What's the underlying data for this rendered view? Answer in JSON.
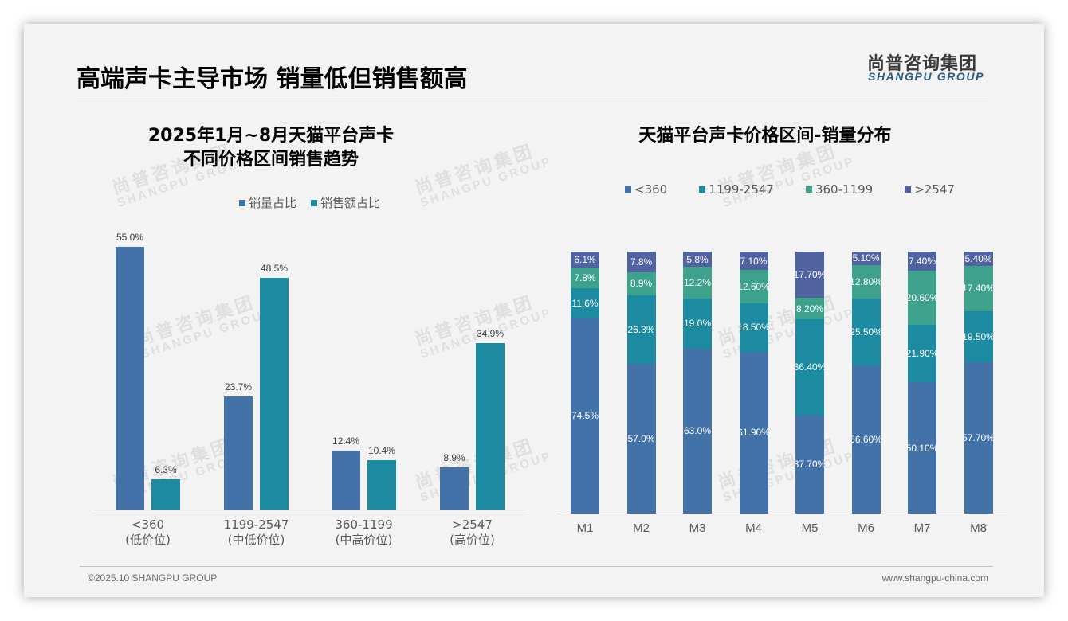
{
  "header": {
    "title": "高端声卡主导市场 销量低但销售额高",
    "logo_cn": "尚普咨询集团",
    "logo_en": "SHANGPU GROUP"
  },
  "watermark": {
    "cn": "尚普咨询集团",
    "en": "SHANGPU GROUP"
  },
  "colors": {
    "lt360": "#4272a8",
    "r1199_2547": "#1c8aa0",
    "r360_1199": "#3ea18c",
    "gt2547": "#5162a0",
    "volume": "#4272a8",
    "revenue": "#1c8aa0"
  },
  "footer": {
    "copyright": "©2025.10 SHANGPU GROUP",
    "website": "www.shangpu-china.com"
  },
  "chart_data": [
    {
      "type": "bar",
      "title": "2025年1月~8月天猫平台声卡不同价格区间销售趋势",
      "title_line1": "2025年1月~8月天猫平台声卡",
      "title_line2": "不同价格区间销售趋势",
      "categories": [
        "<360",
        "1199-2547",
        "360-1199",
        ">2547"
      ],
      "category_sublabels": [
        "(低价位)",
        "(中低价位)",
        "(中高价位)",
        "(高价位)"
      ],
      "series": [
        {
          "name": "销量占比",
          "values": [
            55.0,
            23.7,
            12.4,
            8.9
          ],
          "labels": [
            "55.0%",
            "23.7%",
            "12.4%",
            "8.9%"
          ]
        },
        {
          "name": "销售额占比",
          "values": [
            6.3,
            48.5,
            10.4,
            34.9
          ],
          "labels": [
            "6.3%",
            "48.5%",
            "10.4%",
            "34.9%"
          ]
        }
      ],
      "legend_position": "top",
      "grid": false,
      "xlabel": "",
      "ylabel": "",
      "ylim": [
        0,
        60
      ]
    },
    {
      "type": "bar",
      "stacked": true,
      "title": "天猫平台声卡价格区间-销量分布",
      "categories": [
        "M1",
        "M2",
        "M3",
        "M4",
        "M5",
        "M6",
        "M7",
        "M8"
      ],
      "series": [
        {
          "name": "<360",
          "values": [
            74.5,
            57.0,
            63.0,
            61.9,
            37.7,
            56.6,
            50.1,
            57.7
          ],
          "labels": [
            "74.5%",
            "57.0%",
            "63.0%",
            "61.90%",
            "37.70%",
            "56.60%",
            "50.10%",
            "57.70%"
          ]
        },
        {
          "name": "1199-2547",
          "values": [
            11.6,
            26.3,
            19.0,
            18.5,
            36.4,
            25.5,
            21.9,
            19.5
          ],
          "labels": [
            "11.6%",
            "26.3%",
            "19.0%",
            "18.50%",
            "36.40%",
            "25.50%",
            "21.90%",
            "19.50%"
          ]
        },
        {
          "name": "360-1199",
          "values": [
            7.8,
            8.9,
            12.2,
            12.6,
            8.2,
            12.8,
            20.6,
            17.4
          ],
          "labels": [
            "7.8%",
            "8.9%",
            "12.2%",
            "12.60%",
            "8.20%",
            "12.80%",
            "20.60%",
            "17.40%"
          ]
        },
        {
          "name": ">2547",
          "values": [
            6.1,
            7.8,
            5.8,
            7.1,
            17.7,
            5.1,
            7.4,
            5.4
          ],
          "labels": [
            "6.1%",
            "7.8%",
            "5.8%",
            "7.10%",
            "17.70%",
            "5.10%",
            "7.40%",
            "5.40%"
          ]
        }
      ],
      "legend_position": "top",
      "grid": false,
      "xlabel": "",
      "ylabel": "",
      "ylim": [
        0,
        100
      ]
    }
  ]
}
